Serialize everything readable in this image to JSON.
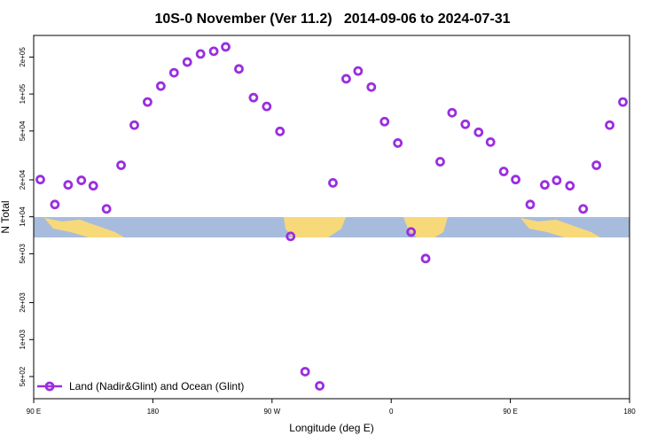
{
  "chart_data": {
    "type": "scatter",
    "title": "10S-0 November (Ver 11.2)   2014-09-06 to 2024-07-31",
    "x_label": "Longitude (deg E)",
    "y_label": "N Total",
    "log_y": true,
    "color": "#9a2ee0",
    "legend_position": "lower left",
    "xlim": [
      90,
      540
    ],
    "xticks": [
      {
        "value": 90,
        "label": "90 E"
      },
      {
        "value": 180,
        "label": "180"
      },
      {
        "value": 270,
        "label": "90 W"
      },
      {
        "value": 360,
        "label": "0"
      },
      {
        "value": 450,
        "label": "90 E"
      },
      {
        "value": 540,
        "label": "180"
      }
    ],
    "ylim": [
      330,
      300000
    ],
    "yticks": [
      {
        "value": 500,
        "label": "5e+02"
      },
      {
        "value": 1000,
        "label": "1e+03"
      },
      {
        "value": 2000,
        "label": "2e+03"
      },
      {
        "value": 5000,
        "label": "5e+03"
      },
      {
        "value": 10000,
        "label": "1e+04"
      },
      {
        "value": 20000,
        "label": "2e+04"
      },
      {
        "value": 50000,
        "label": "5e+04"
      },
      {
        "value": 100000,
        "label": "1e+05"
      },
      {
        "value": 200000,
        "label": "2e+05"
      }
    ],
    "series": [
      {
        "name": "Land (Nadir&Glint) and Ocean (Glint)",
        "color": "#9a2ee0",
        "x": [
          95,
          106,
          116,
          126,
          135,
          145,
          156,
          166,
          176,
          186,
          196,
          206,
          216,
          226,
          235,
          245,
          256,
          266,
          276,
          284,
          295,
          306,
          316,
          326,
          335,
          345,
          355,
          365,
          375,
          386,
          397,
          406,
          416,
          426,
          435,
          445,
          454,
          465,
          476,
          485,
          495,
          505,
          515,
          525,
          535
        ],
        "values": [
          20100,
          12600,
          18200,
          19800,
          17900,
          11600,
          26300,
          55800,
          86100,
          116000,
          149000,
          182000,
          212000,
          223000,
          242000,
          160000,
          93500,
          79200,
          49600,
          6930,
          548,
          420,
          18900,
          133000,
          154000,
          114000,
          59600,
          39900,
          7530,
          4570,
          28100,
          70400,
          56700,
          48800,
          40600,
          23400,
          20100,
          12600,
          18200,
          19800,
          17900,
          11600,
          26300,
          55800,
          86100
        ]
      }
    ]
  }
}
